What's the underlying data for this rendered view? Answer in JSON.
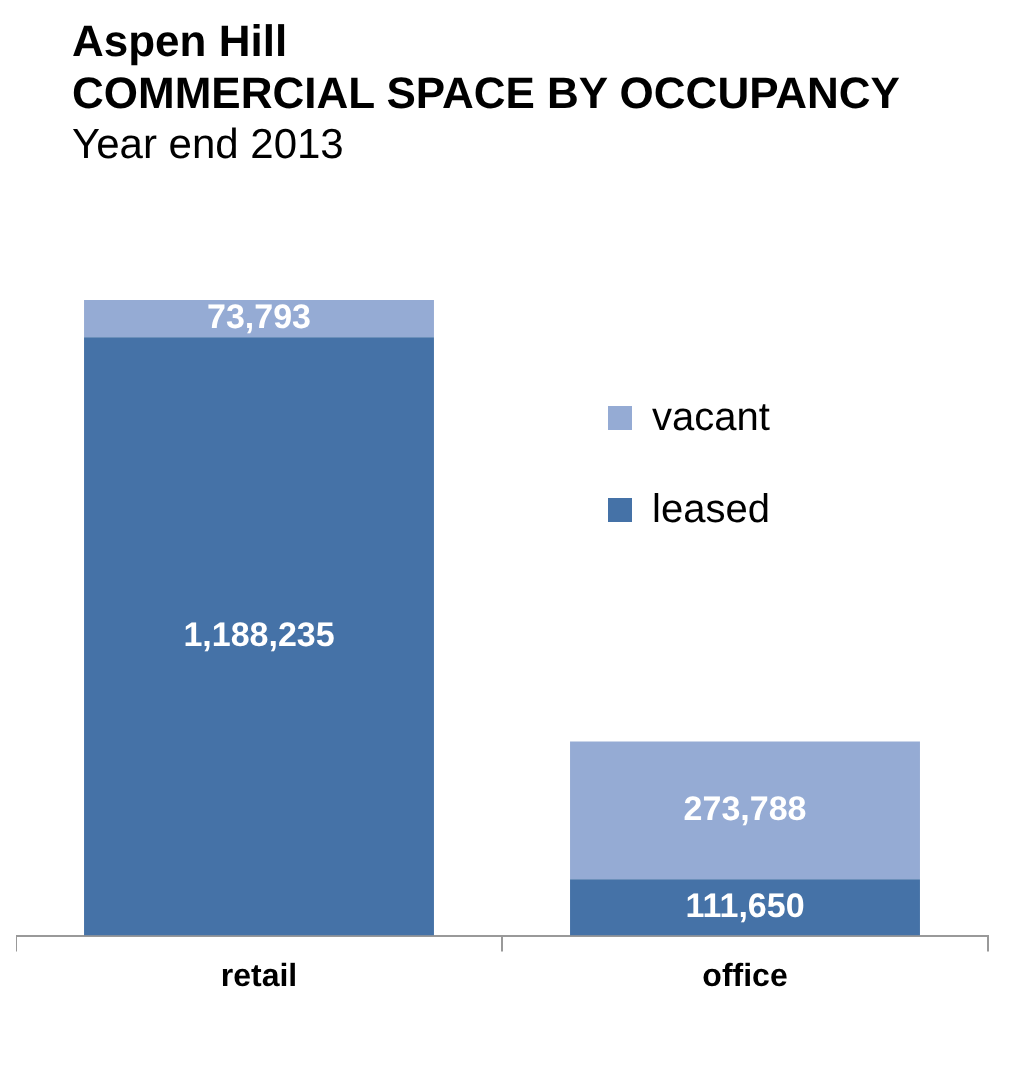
{
  "chart_data": {
    "type": "bar",
    "title": "Aspen Hill",
    "subtitle": "COMMERCIAL SPACE BY OCCUPANCY",
    "annotations": [
      "Year end 2013"
    ],
    "categories": [
      "retail",
      "office"
    ],
    "stacked": true,
    "legend": "right",
    "series": [
      {
        "name": "leased",
        "color": "#4572a7",
        "values": [
          1188235,
          111650
        ],
        "value_labels": [
          "1,188,235",
          "111,650"
        ]
      },
      {
        "name": "vacant",
        "color": "#95abd4",
        "values": [
          73793,
          273788
        ],
        "value_labels": [
          "73,793",
          "273,788"
        ]
      }
    ]
  }
}
